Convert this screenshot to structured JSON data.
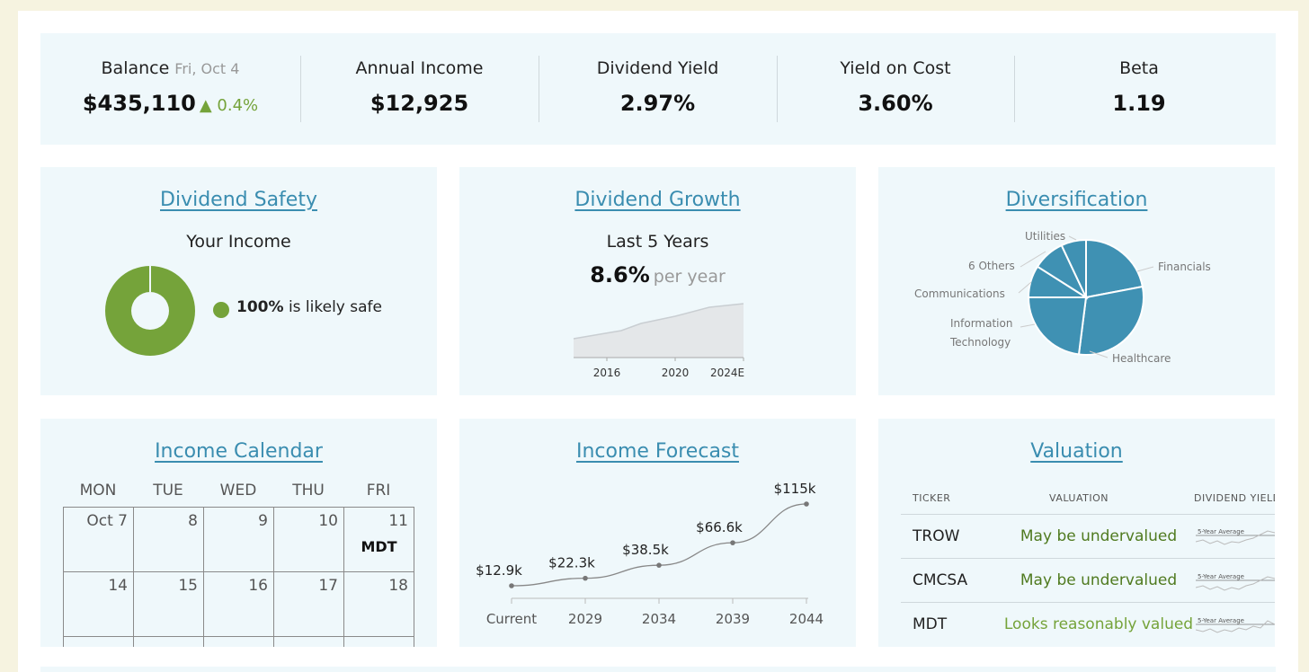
{
  "summary": {
    "balance": {
      "label": "Balance",
      "date": "Fri, Oct 4",
      "value": "$435,110",
      "change": "▲ 0.4%"
    },
    "annual_income": {
      "label": "Annual Income",
      "value": "$12,925"
    },
    "dividend_yield": {
      "label": "Dividend Yield",
      "value": "2.97%"
    },
    "yield_on_cost": {
      "label": "Yield on Cost",
      "value": "3.60%"
    },
    "beta": {
      "label": "Beta",
      "value": "1.19"
    }
  },
  "safety": {
    "title": "Dividend Safety",
    "subtitle": "Your Income",
    "pct": "100%",
    "pct_text": "is likely safe",
    "safe_fraction": 1.0,
    "color": "#75a33a"
  },
  "growth": {
    "title": "Dividend Growth",
    "subtitle": "Last 5 Years",
    "rate": "8.6%",
    "rate_suffix": "per year",
    "ticks": [
      "2016",
      "2020",
      "2024E"
    ]
  },
  "diversification": {
    "title": "Diversification",
    "color": "#3f91b3",
    "slices": [
      {
        "name": "Financials",
        "share": 0.22
      },
      {
        "name": "Healthcare",
        "share": 0.3
      },
      {
        "name": "Information Technology",
        "share": 0.23
      },
      {
        "name": "Communications",
        "share": 0.09
      },
      {
        "name": "6 Others",
        "share": 0.09
      },
      {
        "name": "Utilities",
        "share": 0.07
      }
    ]
  },
  "calendar": {
    "title": "Income Calendar",
    "days": [
      "MON",
      "TUE",
      "WED",
      "THU",
      "FRI"
    ],
    "week1": [
      {
        "date": "Oct 7",
        "ticker": ""
      },
      {
        "date": "8",
        "ticker": ""
      },
      {
        "date": "9",
        "ticker": ""
      },
      {
        "date": "10",
        "ticker": ""
      },
      {
        "date": "11",
        "ticker": "MDT"
      }
    ],
    "week2": [
      {
        "date": "14",
        "ticker": ""
      },
      {
        "date": "15",
        "ticker": ""
      },
      {
        "date": "16",
        "ticker": ""
      },
      {
        "date": "17",
        "ticker": ""
      },
      {
        "date": "18",
        "ticker": ""
      }
    ]
  },
  "forecast": {
    "title": "Income Forecast",
    "categories": [
      "Current",
      "2029",
      "2034",
      "2039",
      "2044"
    ],
    "values": [
      12.9,
      22.3,
      38.5,
      66.6,
      115
    ],
    "labels": [
      "$12.9k",
      "$22.3k",
      "$38.5k",
      "$66.6k",
      "$115k"
    ]
  },
  "valuation": {
    "title": "Valuation",
    "headers": {
      "ticker": "TICKER",
      "valuation": "VALUATION",
      "yield": "DIVIDEND YIELD"
    },
    "spark_label": "5-Year Average",
    "rows": [
      {
        "ticker": "TROW",
        "valuation": "May be undervalued",
        "color": "#4f7a1f"
      },
      {
        "ticker": "CMCSA",
        "valuation": "May be undervalued",
        "color": "#4f7a1f"
      },
      {
        "ticker": "MDT",
        "valuation": "Looks reasonably valued",
        "color": "#75a33a"
      }
    ]
  }
}
